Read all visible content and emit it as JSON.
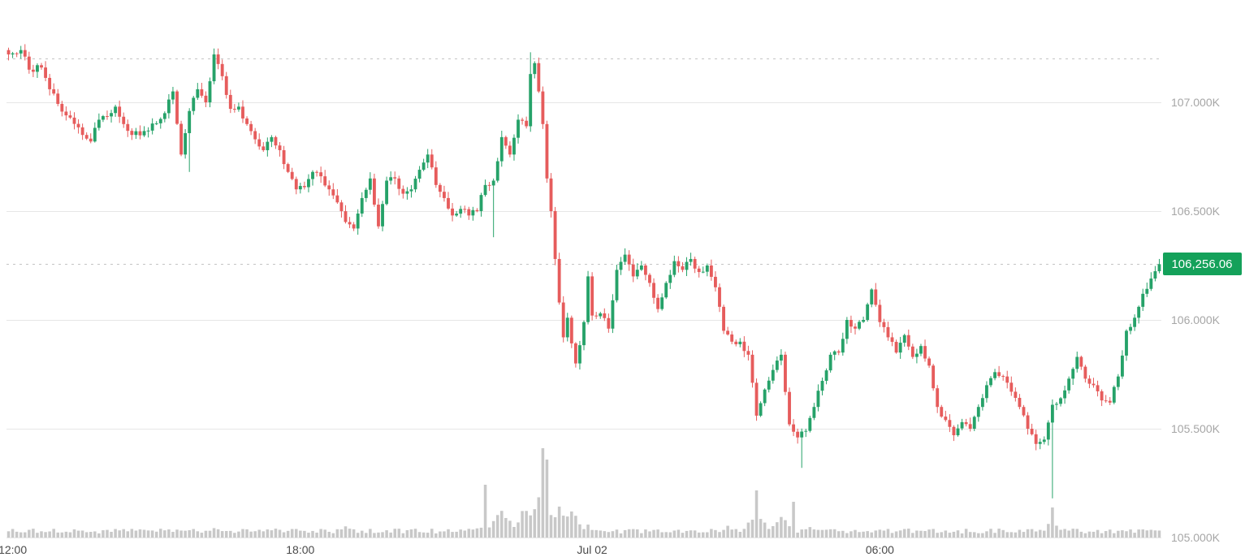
{
  "chart_data": {
    "type": "candlestick",
    "y_ticks": [
      "107.000K",
      "106.500K",
      "106.000K",
      "105.500K",
      "105.000K"
    ],
    "y_tick_values": [
      107000,
      106500,
      106000,
      105500,
      105000
    ],
    "ylim": [
      105000,
      107200
    ],
    "x_tick_labels": [
      "12:00",
      "18:00",
      "Jul 02",
      "06:00"
    ],
    "x_tick_bar_index": [
      1,
      71,
      142,
      212
    ],
    "high_line_value": 107200,
    "current_price": 106256.06,
    "current_price_label": "106,256.06",
    "colors": {
      "up": "#26a269",
      "down": "#e65c5c",
      "volume": "#c8c8c8",
      "grid": "#e6e6e6",
      "price_tag": "#14a15a"
    },
    "grid": true,
    "close_path": [
      [
        0,
        107220
      ],
      [
        3,
        107240
      ],
      [
        5,
        107150
      ],
      [
        8,
        107160
      ],
      [
        10,
        107060
      ],
      [
        14,
        106940
      ],
      [
        18,
        106850
      ],
      [
        20,
        106820
      ],
      [
        22,
        106920
      ],
      [
        26,
        106980
      ],
      [
        28,
        106900
      ],
      [
        30,
        106850
      ],
      [
        34,
        106870
      ],
      [
        38,
        106950
      ],
      [
        40,
        107050
      ],
      [
        42,
        106760
      ],
      [
        44,
        106960
      ],
      [
        46,
        107060
      ],
      [
        48,
        107000
      ],
      [
        50,
        107220
      ],
      [
        52,
        107120
      ],
      [
        54,
        106970
      ],
      [
        56,
        106980
      ],
      [
        58,
        106900
      ],
      [
        60,
        106830
      ],
      [
        62,
        106780
      ],
      [
        64,
        106840
      ],
      [
        66,
        106780
      ],
      [
        68,
        106680
      ],
      [
        70,
        106600
      ],
      [
        72,
        106610
      ],
      [
        74,
        106680
      ],
      [
        76,
        106660
      ],
      [
        78,
        106600
      ],
      [
        80,
        106540
      ],
      [
        82,
        106450
      ],
      [
        84,
        106420
      ],
      [
        86,
        106560
      ],
      [
        88,
        106650
      ],
      [
        90,
        106430
      ],
      [
        92,
        106640
      ],
      [
        94,
        106650
      ],
      [
        96,
        106580
      ],
      [
        98,
        106600
      ],
      [
        100,
        106690
      ],
      [
        102,
        106760
      ],
      [
        104,
        106620
      ],
      [
        106,
        106560
      ],
      [
        108,
        106480
      ],
      [
        110,
        106510
      ],
      [
        112,
        106480
      ],
      [
        114,
        106500
      ],
      [
        116,
        106620
      ],
      [
        118,
        106640
      ],
      [
        120,
        106840
      ],
      [
        122,
        106760
      ],
      [
        124,
        106920
      ],
      [
        126,
        106890
      ],
      [
        127,
        107130
      ],
      [
        128,
        107180
      ],
      [
        129,
        107050
      ],
      [
        130,
        106900
      ],
      [
        131,
        106650
      ],
      [
        132,
        106500
      ],
      [
        133,
        106280
      ],
      [
        134,
        106080
      ],
      [
        135,
        105920
      ],
      [
        136,
        106010
      ],
      [
        138,
        105800
      ],
      [
        140,
        105990
      ],
      [
        141,
        106200
      ],
      [
        142,
        106020
      ],
      [
        144,
        106030
      ],
      [
        146,
        105960
      ],
      [
        148,
        106230
      ],
      [
        150,
        106300
      ],
      [
        152,
        106200
      ],
      [
        154,
        106250
      ],
      [
        156,
        106170
      ],
      [
        158,
        106050
      ],
      [
        160,
        106170
      ],
      [
        162,
        106270
      ],
      [
        164,
        106230
      ],
      [
        166,
        106280
      ],
      [
        168,
        106220
      ],
      [
        170,
        106250
      ],
      [
        172,
        106150
      ],
      [
        174,
        105950
      ],
      [
        176,
        105900
      ],
      [
        178,
        105900
      ],
      [
        180,
        105840
      ],
      [
        182,
        105560
      ],
      [
        184,
        105680
      ],
      [
        186,
        105770
      ],
      [
        188,
        105840
      ],
      [
        190,
        105520
      ],
      [
        192,
        105460
      ],
      [
        194,
        105490
      ],
      [
        196,
        105600
      ],
      [
        198,
        105720
      ],
      [
        200,
        105840
      ],
      [
        202,
        105850
      ],
      [
        204,
        106000
      ],
      [
        206,
        105960
      ],
      [
        208,
        106000
      ],
      [
        210,
        106140
      ],
      [
        212,
        105990
      ],
      [
        214,
        105920
      ],
      [
        216,
        105850
      ],
      [
        218,
        105930
      ],
      [
        220,
        105830
      ],
      [
        222,
        105880
      ],
      [
        224,
        105790
      ],
      [
        226,
        105600
      ],
      [
        228,
        105540
      ],
      [
        230,
        105470
      ],
      [
        232,
        105530
      ],
      [
        234,
        105500
      ],
      [
        236,
        105600
      ],
      [
        238,
        105700
      ],
      [
        240,
        105760
      ],
      [
        242,
        105740
      ],
      [
        244,
        105670
      ],
      [
        246,
        105600
      ],
      [
        248,
        105500
      ],
      [
        250,
        105430
      ],
      [
        252,
        105450
      ],
      [
        254,
        105610
      ],
      [
        256,
        105640
      ],
      [
        258,
        105730
      ],
      [
        260,
        105830
      ],
      [
        262,
        105730
      ],
      [
        264,
        105700
      ],
      [
        266,
        105630
      ],
      [
        268,
        105620
      ],
      [
        270,
        105740
      ],
      [
        272,
        105950
      ],
      [
        274,
        106010
      ],
      [
        276,
        106120
      ],
      [
        278,
        106190
      ],
      [
        280,
        106256
      ]
    ],
    "volume_peaks": [
      [
        0,
        8
      ],
      [
        30,
        12
      ],
      [
        50,
        14
      ],
      [
        60,
        9
      ],
      [
        82,
        14
      ],
      [
        110,
        9
      ],
      [
        116,
        20
      ],
      [
        120,
        35
      ],
      [
        126,
        40
      ],
      [
        130,
        62
      ],
      [
        134,
        42
      ],
      [
        137,
        35
      ],
      [
        141,
        15
      ],
      [
        160,
        8
      ],
      [
        175,
        15
      ],
      [
        182,
        32
      ],
      [
        188,
        25
      ],
      [
        195,
        12
      ],
      [
        212,
        10
      ],
      [
        224,
        10
      ],
      [
        254,
        20
      ],
      [
        260,
        9
      ],
      [
        280,
        9
      ]
    ]
  }
}
